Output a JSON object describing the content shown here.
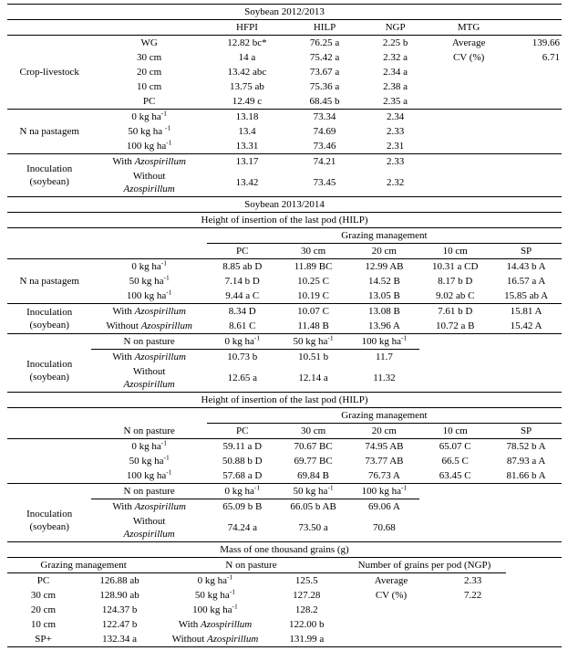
{
  "page": {
    "background": "#ffffff",
    "text_color": "#000000",
    "rule_color": "#000000"
  },
  "sections": [
    {
      "name": "soybean-2012-2013",
      "col_widths": [
        "15.2%",
        "20.8%",
        "14.5%",
        "13.5%",
        "12%",
        "14.5%",
        "9.5%"
      ],
      "rows": [
        {
          "bt": true,
          "bb": true,
          "cells": [
            {
              "t": "Soybean 2012/2013",
              "cs": 7,
              "name": "section-title"
            }
          ]
        },
        {
          "bb": true,
          "cells": [
            "",
            "",
            {
              "t": "HFPI",
              "name": "column-header"
            },
            {
              "t": "HILP",
              "name": "column-header"
            },
            {
              "t": "NGP",
              "name": "column-header"
            },
            {
              "t": "MTG",
              "name": "column-header"
            },
            ""
          ]
        },
        {
          "cells": [
            {
              "t": "Crop-livestock",
              "rs": 5,
              "name": "row-group-label"
            },
            "WG",
            "12.82  bc*",
            "76.25  a",
            "2.25  b",
            "Average",
            {
              "t": "139.66",
              "al": "right"
            }
          ]
        },
        {
          "cells": [
            "30 cm",
            "14  a",
            "75.42  a",
            "2.32  a",
            "CV (%)",
            {
              "t": "6.71",
              "al": "right"
            }
          ]
        },
        {
          "cells": [
            "20 cm",
            "13.42  abc",
            "73.67  a",
            "2.34  a",
            "",
            ""
          ]
        },
        {
          "cells": [
            "10 cm",
            "13.75 ab",
            "75.36  a",
            "2.38  a",
            "",
            ""
          ]
        },
        {
          "bb": true,
          "cells": [
            "PC",
            "12.49  c",
            "68.45  b",
            "2.35  a",
            "",
            ""
          ]
        },
        {
          "cells": [
            {
              "t": "N na pastagem",
              "rs": 3,
              "name": "row-group-label"
            },
            "0 kg ha^{-1}",
            "13.18",
            "73.34",
            "2.34",
            "",
            ""
          ]
        },
        {
          "cells": [
            "50 kg ha ^{-1}",
            "13.4",
            "74.69",
            "2.33",
            "",
            ""
          ]
        },
        {
          "bb": true,
          "cells": [
            "100 kg ha^{-1}",
            "13.31",
            "73.46",
            "2.31",
            "",
            ""
          ]
        },
        {
          "cells": [
            {
              "t": "Inoculation (soybean)",
              "rs": 2,
              "name": "row-group-label"
            },
            "With _Azospirillum_",
            "13.17",
            "74.21",
            "2.33",
            "",
            ""
          ]
        },
        {
          "bb": true,
          "cells": [
            "Without\n_Azospirillum_",
            "13.42",
            "73.45",
            "2.32",
            "",
            ""
          ]
        }
      ]
    },
    {
      "name": "soybean-2013-2014",
      "col_widths": [
        "15.2%",
        "20.8%",
        "12.8%",
        "12.8%",
        "12.8%",
        "12.8%",
        "12.8%"
      ],
      "rows": [
        {
          "bb": true,
          "cells": [
            {
              "t": "Soybean 2013/2014",
              "cs": 7,
              "name": "section-title"
            }
          ]
        },
        {
          "bb": true,
          "cells": [
            {
              "t": "Height of insertion of the last pod (HILP)",
              "cs": 7,
              "name": "section-subtitle"
            }
          ]
        },
        {
          "cells": [
            {
              "t": "",
              "cs": 2
            },
            {
              "t": "Grazing management",
              "cs": 5,
              "bb": true,
              "name": "column-group-header"
            }
          ]
        },
        {
          "bb": true,
          "cells": [
            "",
            "",
            {
              "t": "PC",
              "name": "column-header"
            },
            {
              "t": "30 cm",
              "name": "column-header"
            },
            {
              "t": "20 cm",
              "name": "column-header"
            },
            {
              "t": "10 cm",
              "name": "column-header"
            },
            {
              "t": "SP",
              "name": "column-header"
            }
          ]
        },
        {
          "cells": [
            {
              "t": "N na pastagem",
              "rs": 3,
              "name": "row-group-label"
            },
            "0 kg ha^{-1}",
            "8.85 ab D",
            "11.89 BC",
            "12.99 AB",
            "10.31 a CD",
            "14.43 b A"
          ]
        },
        {
          "cells": [
            "50 kg ha^{-1}",
            "7.14 b D",
            "10.25 C",
            "14.52 B",
            "8.17 b D",
            "16.57 a A"
          ]
        },
        {
          "bb": true,
          "cells": [
            "100 kg ha^{-1}",
            "9.44 a C",
            "10.19 C",
            "13.05 B",
            "9.02 ab C",
            "15.85 ab A"
          ]
        },
        {
          "cells": [
            {
              "t": "Inoculation (soybean)",
              "rs": 2,
              "name": "row-group-label"
            },
            "With _Azospirillum_",
            "8.34 D",
            "10.07 C",
            "13.08 B",
            "7.61 b D",
            "15.81 A"
          ]
        },
        {
          "bb": true,
          "cells": [
            "Without _Azospirillum_",
            "8.61 C",
            "11.48 B",
            "13.96 A",
            "10.72 a B",
            "15.42 A"
          ]
        },
        {
          "cells": [
            "",
            {
              "t": "N on pasture",
              "bb": true,
              "name": "column-header"
            },
            {
              "t": "0 kg ha^{-1}",
              "bb": true,
              "name": "column-header"
            },
            {
              "t": "50 kg ha^{-1}",
              "bb": true,
              "name": "column-header"
            },
            {
              "t": "100 kg ha^{-1}",
              "bb": true,
              "name": "column-header"
            },
            "",
            ""
          ]
        },
        {
          "cells": [
            {
              "t": "Inoculation (soybean)",
              "rs": 2,
              "name": "row-group-label"
            },
            "With _Azospirillum_",
            "10.73 b",
            "10.51 b",
            "11.7",
            "",
            ""
          ]
        },
        {
          "bb": true,
          "cells": [
            "Without\n_Azospirillum_",
            "12.65 a",
            "12.14 a",
            "11.32",
            "",
            ""
          ]
        }
      ]
    },
    {
      "name": "hilp-grazing-nitrogen",
      "col_widths": [
        "15.2%",
        "20.8%",
        "12.8%",
        "12.8%",
        "12.8%",
        "12.8%",
        "12.8%"
      ],
      "rows": [
        {
          "bb": true,
          "cells": [
            {
              "t": "Height of insertion of the last pod (HILP)",
              "cs": 7,
              "name": "section-title"
            }
          ]
        },
        {
          "cells": [
            {
              "t": "",
              "cs": 2
            },
            {
              "t": "Grazing management",
              "cs": 5,
              "bb": true,
              "name": "column-group-header"
            }
          ]
        },
        {
          "bb": true,
          "cells": [
            "",
            {
              "t": "N on pasture",
              "name": "column-header"
            },
            {
              "t": "PC",
              "name": "column-header"
            },
            {
              "t": "30 cm",
              "name": "column-header"
            },
            {
              "t": "20 cm",
              "name": "column-header"
            },
            {
              "t": "10 cm",
              "name": "column-header"
            },
            {
              "t": "SP",
              "name": "column-header"
            }
          ]
        },
        {
          "cells": [
            "",
            "0 kg ha^{-1}",
            "59.11 a D",
            "70.67 BC",
            "74.95 AB",
            "65.07 C",
            "78.52 b A"
          ]
        },
        {
          "cells": [
            "",
            "50 kg ha^{-1}",
            "50.88 b D",
            "69.77 BC",
            "73.77 AB",
            "66.5 C",
            "87.93 a A"
          ]
        },
        {
          "bb": true,
          "cells": [
            "",
            "100 kg ha^{-1}",
            "57.68 a D",
            "69.84 B",
            "76.73 A",
            "63.45 C",
            "81.66 b A"
          ]
        },
        {
          "cells": [
            "",
            {
              "t": "N on pasture",
              "bb": true,
              "name": "column-header"
            },
            {
              "t": "0 kg ha^{-1}",
              "bb": true,
              "name": "column-header"
            },
            {
              "t": "50 kg ha^{-1}",
              "bb": true,
              "name": "column-header"
            },
            {
              "t": "100 kg ha^{-1}",
              "bb": true,
              "name": "column-header"
            },
            "",
            ""
          ]
        },
        {
          "cells": [
            {
              "t": "Inoculation (soybean)",
              "rs": 2,
              "name": "row-group-label"
            },
            "With _Azospirillum_",
            "65.09 b B",
            "66.05 b AB",
            "69.06 A",
            "",
            ""
          ]
        },
        {
          "bb": true,
          "cells": [
            "Without\n_Azospirillum_",
            "74.24 a",
            "73.50 a",
            "70.68",
            "",
            ""
          ]
        }
      ]
    },
    {
      "name": "mass-of-one-thousand-grains",
      "col_widths": [
        "13%",
        "14.5%",
        "20%",
        "13%",
        "17.5%",
        "12%",
        "10%"
      ],
      "rows": [
        {
          "bb": true,
          "cells": [
            {
              "t": "Mass of one thousand grains (g)",
              "cs": 7,
              "name": "section-title"
            }
          ]
        },
        {
          "cells": [
            {
              "t": "Grazing management",
              "cs": 2,
              "bb": true,
              "name": "column-group-header"
            },
            {
              "t": "N on pasture",
              "cs": 2,
              "bb": true,
              "name": "column-group-header"
            },
            {
              "t": "Number of grains per pod (NGP)",
              "cs": 2,
              "bb": true,
              "name": "column-group-header"
            },
            ""
          ]
        },
        {
          "cells": [
            "PC",
            "126.88 ab",
            "0 kg ha^{-1}",
            "125.5",
            "Average",
            "2.33",
            ""
          ]
        },
        {
          "cells": [
            "30 cm",
            "128.90 ab",
            "50 kg ha^{-1}",
            "127.28",
            "CV (%)",
            "7.22",
            ""
          ]
        },
        {
          "cells": [
            "20 cm",
            "124.37 b",
            "100 kg ha^{-1}",
            "128.2",
            "",
            "",
            ""
          ]
        },
        {
          "cells": [
            "10 cm",
            "122.47 b",
            "With _Azospirillum_",
            "122.00 b",
            "",
            "",
            ""
          ]
        },
        {
          "bb": true,
          "cells": [
            "SP+",
            "132.34 a",
            "Without _Azospirillum_",
            "131.99 a",
            "",
            "",
            ""
          ]
        }
      ]
    }
  ]
}
